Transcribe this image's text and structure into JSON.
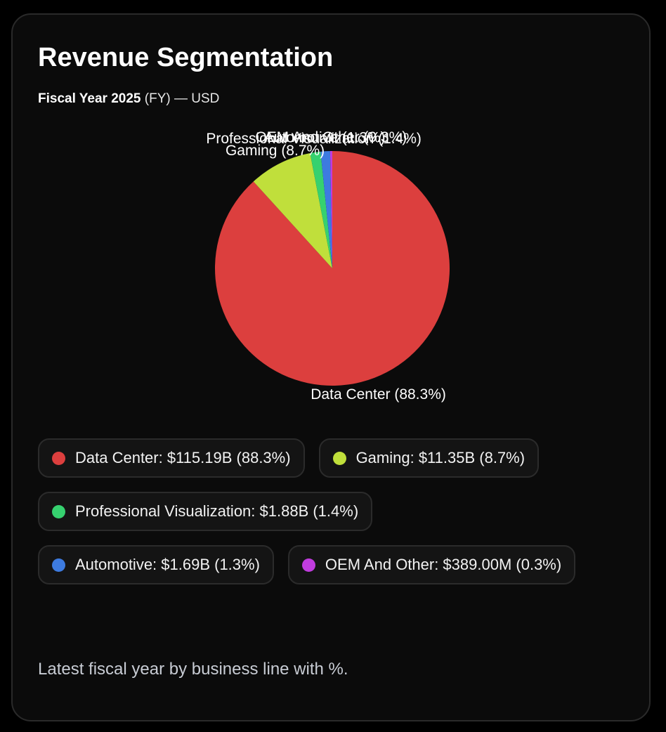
{
  "card": {
    "title": "Revenue Segmentation",
    "subtitle_fy": "Fiscal Year 2025",
    "subtitle_rest": " (FY) — USD",
    "footnote": "Latest fiscal year by business line with %."
  },
  "chart_data": {
    "type": "pie",
    "categories": [
      "Data Center",
      "Gaming",
      "Professional Visualization",
      "Automotive",
      "OEM And Other"
    ],
    "values": [
      115.19,
      11.35,
      1.88,
      1.69,
      0.389
    ],
    "percentages": [
      88.3,
      8.7,
      1.4,
      1.3,
      0.3
    ],
    "colors": [
      "#dc3f3e",
      "#c0df3b",
      "#36d16f",
      "#3d7be0",
      "#c03cde"
    ],
    "slice_labels": [
      "Data Center (88.3%)",
      "Gaming (8.7%)",
      "Professional Visualization (1.4%)",
      "Automotive (1.3%)",
      "OEM And Other (0.3%)"
    ],
    "legend": [
      {
        "label": "Data Center: $115.19B (88.3%)",
        "color": "#dc3f3e"
      },
      {
        "label": "Gaming: $11.35B (8.7%)",
        "color": "#c0df3b"
      },
      {
        "label": "Professional Visualization: $1.88B (1.4%)",
        "color": "#36d16f"
      },
      {
        "label": "Automotive: $1.69B (1.3%)",
        "color": "#3d7be0"
      },
      {
        "label": "OEM And Other: $389.00M (0.3%)",
        "color": "#c03cde"
      }
    ],
    "legend_placement": "bottom"
  }
}
